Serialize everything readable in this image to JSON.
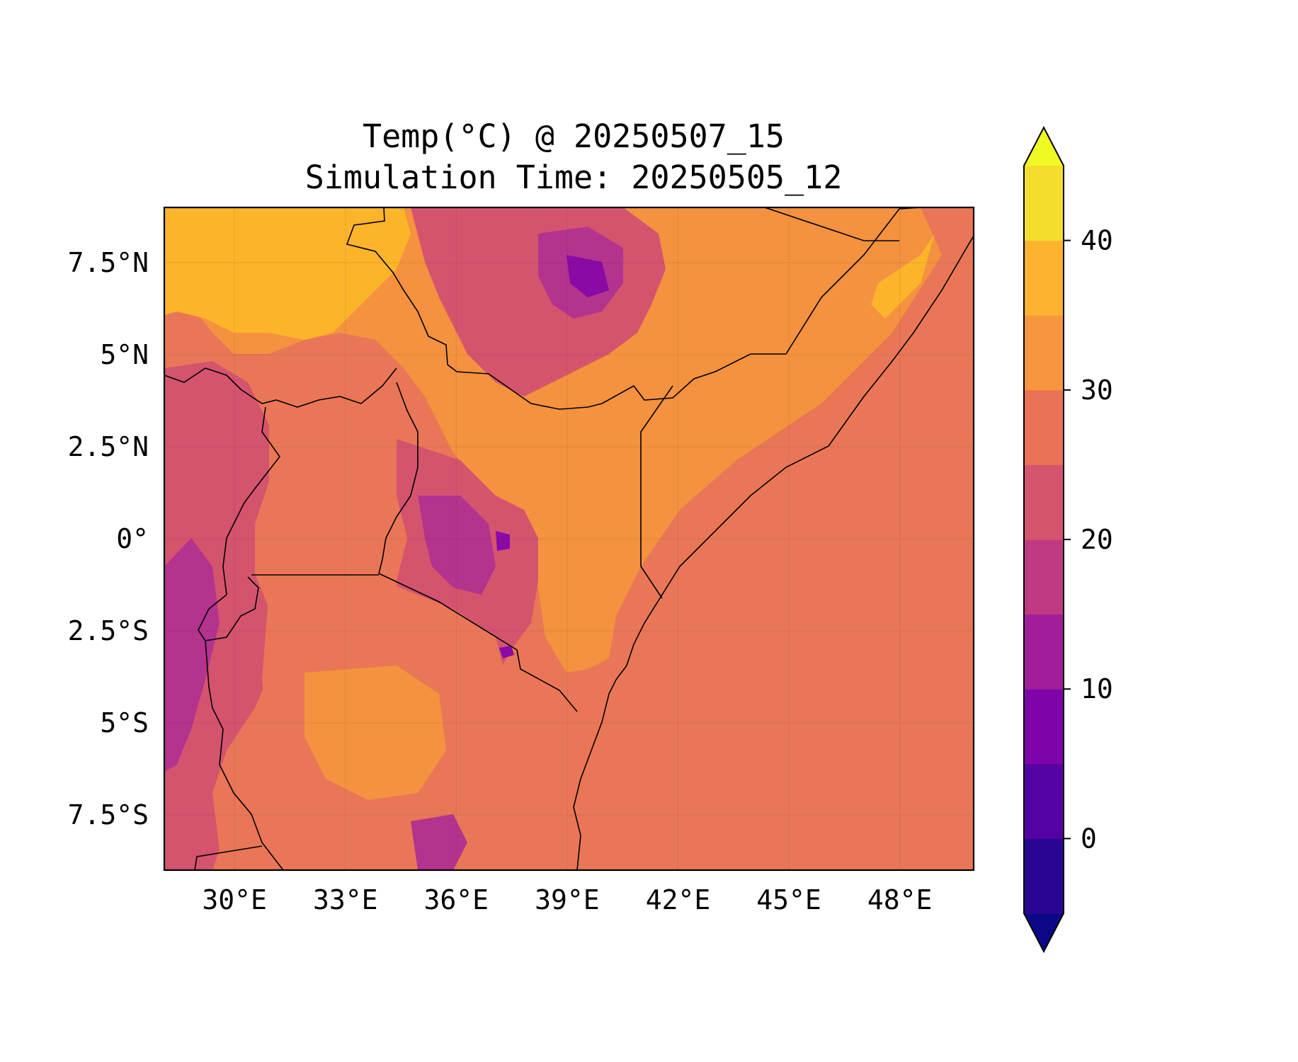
{
  "title": {
    "line1": "Temp(°C) @ 20250507_15",
    "line2": "Simulation Time: 20250505_12"
  },
  "map": {
    "lon_ticks": [
      "30°E",
      "33°E",
      "36°E",
      "39°E",
      "42°E",
      "45°E",
      "48°E"
    ],
    "lat_ticks": [
      "7.5°N",
      "5°N",
      "2.5°N",
      "0°",
      "2.5°S",
      "5°S",
      "7.5°S"
    ],
    "lon_range": [
      28.1,
      50
    ],
    "lat_range": [
      -9,
      9
    ],
    "colors": {
      "ocean": "#e97757",
      "lowland": "#f4923f",
      "desert": "#fcb42a",
      "highland": "#d4546e",
      "mountain": "#b3338f",
      "peak": "#8a0aa6",
      "border": "#000000"
    }
  },
  "colorbar": {
    "tick_labels": [
      "0",
      "10",
      "20",
      "30",
      "40"
    ],
    "levels": [
      -5,
      0,
      5,
      10,
      15,
      20,
      25,
      30,
      35,
      40,
      45
    ],
    "extend": "both",
    "colormap": "plasma",
    "colors": [
      "#0d0887",
      "#2a0593",
      "#5402a3",
      "#7e03a8",
      "#a21d9a",
      "#c03a83",
      "#d5546e",
      "#e97257",
      "#f8963f",
      "#fdb32f",
      "#f4dd2c",
      "#f0f921"
    ]
  }
}
